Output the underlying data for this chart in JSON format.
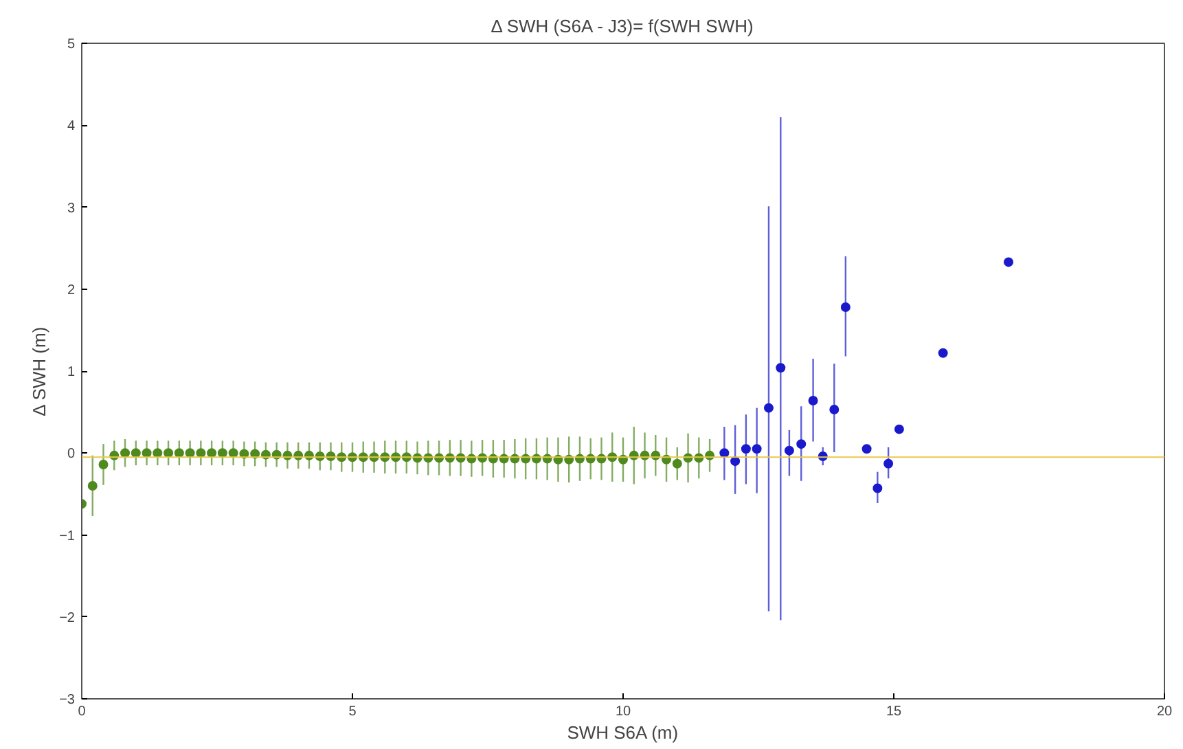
{
  "chart_data": {
    "type": "scatter",
    "title": "Δ SWH (S6A - J3)= f(SWH SWH)",
    "xlabel": "SWH S6A (m)",
    "ylabel": "Δ SWH (m)",
    "xlim": [
      0,
      20
    ],
    "xticks": [
      0,
      5,
      10,
      15,
      20
    ],
    "ylim": [
      -3,
      5
    ],
    "yticks": [
      -3,
      -2,
      -1,
      0,
      1,
      2,
      3,
      4,
      5
    ],
    "grid": false,
    "marker": "circle",
    "series": [
      {
        "color": "#4f8a1e",
        "x": [
          0,
          0.2,
          0.4,
          0.6,
          0.8,
          1.0,
          1.2,
          1.4,
          1.6,
          1.8,
          2.0,
          2.2,
          2.4,
          2.6,
          2.8,
          3.0,
          3.2,
          3.4,
          3.6,
          3.8,
          4.0,
          4.2,
          4.4,
          4.6,
          4.8,
          5.0,
          5.2,
          5.4,
          5.6,
          5.8,
          6.0,
          6.2,
          6.4,
          6.6,
          6.8,
          7.0,
          7.2,
          7.4,
          7.6,
          7.8,
          8.0,
          8.2,
          8.4,
          8.6,
          8.8,
          9.0,
          9.2,
          9.4,
          9.6,
          9.8,
          10.0,
          10.2,
          10.4,
          10.6,
          10.8,
          11.0,
          11.2,
          11.4,
          11.6
        ],
        "values": [
          -0.62,
          -0.4,
          -0.14,
          -0.03,
          0.0,
          0.0,
          0.0,
          0.0,
          0.0,
          0.0,
          0.0,
          0.0,
          0.0,
          0.0,
          0.0,
          -0.01,
          -0.01,
          -0.02,
          -0.02,
          -0.03,
          -0.03,
          -0.03,
          -0.04,
          -0.04,
          -0.05,
          -0.05,
          -0.05,
          -0.05,
          -0.05,
          -0.05,
          -0.05,
          -0.06,
          -0.06,
          -0.06,
          -0.06,
          -0.06,
          -0.07,
          -0.06,
          -0.07,
          -0.07,
          -0.07,
          -0.07,
          -0.07,
          -0.07,
          -0.08,
          -0.08,
          -0.07,
          -0.07,
          -0.07,
          -0.05,
          -0.08,
          -0.03,
          -0.03,
          -0.03,
          -0.08,
          -0.13,
          -0.06,
          -0.06,
          -0.03
        ],
        "errors": [
          null,
          0.37,
          0.25,
          0.18,
          0.17,
          0.15,
          0.15,
          0.15,
          0.15,
          0.15,
          0.15,
          0.15,
          0.15,
          0.15,
          0.15,
          0.15,
          0.15,
          0.15,
          0.15,
          0.16,
          0.16,
          0.16,
          0.17,
          0.17,
          0.18,
          0.18,
          0.19,
          0.19,
          0.2,
          0.2,
          0.2,
          0.2,
          0.21,
          0.21,
          0.22,
          0.22,
          0.22,
          0.22,
          0.23,
          0.23,
          0.24,
          0.25,
          0.25,
          0.26,
          0.27,
          0.28,
          0.27,
          0.25,
          0.26,
          0.3,
          0.27,
          0.35,
          0.28,
          0.25,
          0.27,
          0.2,
          0.3,
          0.25,
          0.2
        ]
      },
      {
        "color": "#1a1acc",
        "x": [
          11.87,
          12.07,
          12.27,
          12.47,
          12.69,
          12.91,
          13.07,
          13.29,
          13.51,
          13.69,
          13.9,
          14.11,
          14.5,
          14.7,
          14.9,
          15.1,
          15.91,
          17.12
        ],
        "values": [
          0.0,
          -0.1,
          0.05,
          0.05,
          0.55,
          1.04,
          0.03,
          0.11,
          0.64,
          -0.04,
          0.53,
          1.78,
          0.05,
          -0.43,
          -0.13,
          0.29,
          1.22,
          2.33
        ],
        "errors": [
          [
            -0.33,
            0.32
          ],
          [
            -0.5,
            0.34
          ],
          [
            -0.38,
            0.47
          ],
          [
            -0.49,
            0.55
          ],
          [
            -1.93,
            3.01
          ],
          [
            -2.04,
            4.1
          ],
          [
            -0.28,
            0.28
          ],
          [
            -0.34,
            0.57
          ],
          [
            0.14,
            1.15
          ],
          [
            -0.15,
            0.07
          ],
          [
            0.01,
            1.09
          ],
          [
            1.18,
            2.4
          ],
          null,
          [
            -0.61,
            -0.23
          ],
          [
            -0.31,
            0.07
          ],
          null,
          null,
          null
        ]
      }
    ],
    "ref_lines": [
      {
        "axis": "y",
        "value": -0.05,
        "color": "#e8c84a"
      }
    ]
  }
}
